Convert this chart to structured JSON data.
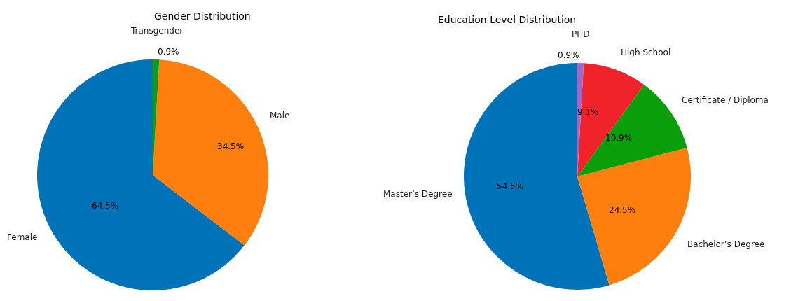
{
  "chart_data": [
    {
      "type": "pie",
      "title": "Gender Distribution",
      "categories": [
        "Female",
        "Male",
        "Transgender"
      ],
      "values": [
        64.5,
        34.5,
        0.9
      ],
      "colors": [
        "#0072b8",
        "#ff7f0e",
        "#13971c"
      ],
      "value_labels": [
        "64.5%",
        "34.5%",
        "0.9%"
      ]
    },
    {
      "type": "pie",
      "title": "Education Level Distribution",
      "categories": [
        "Master’s Degree",
        "Bachelor’s Degree",
        "Certificate / Diploma",
        "High School",
        "PHD"
      ],
      "values": [
        54.5,
        24.5,
        10.9,
        9.1,
        0.9
      ],
      "colors": [
        "#0072b8",
        "#ff7f0e",
        "#0a9e0a",
        "#f0232a",
        "#a066c8"
      ],
      "value_labels": [
        "54.5%",
        "24.5%",
        "10.9%",
        "9.1%",
        "0.9%"
      ]
    }
  ]
}
